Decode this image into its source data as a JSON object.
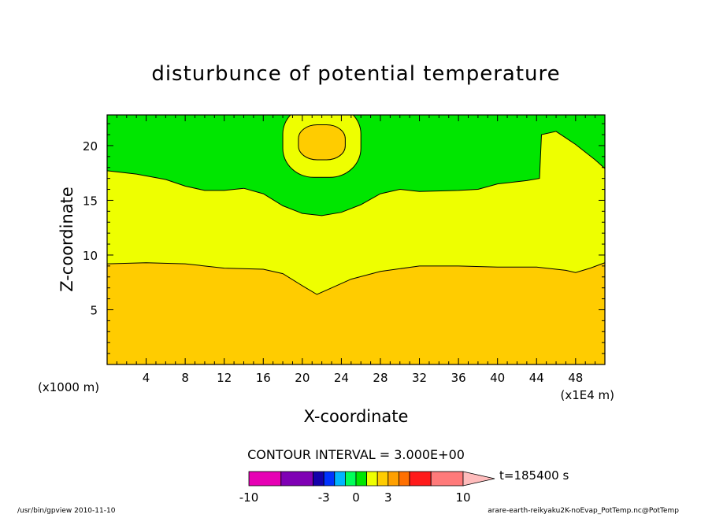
{
  "chart_data": {
    "type": "heatmap",
    "title": "disturbunce of potential temperature",
    "xlabel": "X-coordinate",
    "ylabel": "Z-coordinate",
    "x_unit_label": "(x1000 m)",
    "x_scale_label": "(x1E4 m)",
    "xlim": [
      0,
      51
    ],
    "ylim": [
      0,
      22.8
    ],
    "x_ticks": [
      4,
      8,
      12,
      16,
      20,
      24,
      28,
      32,
      36,
      40,
      44,
      48
    ],
    "y_ticks": [
      5,
      10,
      15,
      20
    ],
    "contour_interval_text": "CONTOUR INTERVAL = 3.000E+00",
    "time_label": "t=185400 s",
    "colorbar": {
      "tick_labels": [
        {
          "label": "-10",
          "value": -10
        },
        {
          "label": "-3",
          "value": -3
        },
        {
          "label": "0",
          "value": 0
        },
        {
          "label": "3",
          "value": 3
        },
        {
          "label": "10",
          "value": 10
        }
      ],
      "bins": [
        {
          "from": -10,
          "to": -7,
          "color": "#e600b4"
        },
        {
          "from": -7,
          "to": -4,
          "color": "#7f00b4"
        },
        {
          "from": -4,
          "to": -3,
          "color": "#1400aa"
        },
        {
          "from": -3,
          "to": -2,
          "color": "#0033ff"
        },
        {
          "from": -2,
          "to": -1,
          "color": "#00b4ff"
        },
        {
          "from": -1,
          "to": 0,
          "color": "#00ff59"
        },
        {
          "from": 0,
          "to": 1,
          "color": "#00e600"
        },
        {
          "from": 1,
          "to": 2,
          "color": "#eeff00"
        },
        {
          "from": 2,
          "to": 3,
          "color": "#ffcc00"
        },
        {
          "from": 3,
          "to": 4,
          "color": "#ffa000"
        },
        {
          "from": 4,
          "to": 5,
          "color": "#ff7000"
        },
        {
          "from": 5,
          "to": 7,
          "color": "#ff1a1a"
        },
        {
          "from": 7,
          "to": 10,
          "color": "#ff7a7a"
        }
      ],
      "overflow_color": "#ffbcbc"
    },
    "regions": [
      {
        "name": "lower-warm-layer",
        "color": "#ffcc00",
        "top_boundary": [
          [
            0,
            9.2
          ],
          [
            4,
            9.3
          ],
          [
            8,
            9.2
          ],
          [
            12,
            8.8
          ],
          [
            16,
            8.7
          ],
          [
            18,
            8.3
          ],
          [
            20,
            7.2
          ],
          [
            21.5,
            6.4
          ],
          [
            23,
            7.0
          ],
          [
            25,
            7.8
          ],
          [
            28,
            8.5
          ],
          [
            32,
            9.0
          ],
          [
            36,
            9.0
          ],
          [
            40,
            8.9
          ],
          [
            44,
            8.9
          ],
          [
            47,
            8.6
          ],
          [
            48,
            8.4
          ],
          [
            49.5,
            8.8
          ],
          [
            51,
            9.3
          ]
        ]
      },
      {
        "name": "middle-layer",
        "color": "#eeff00",
        "top_boundary": [
          [
            0,
            17.7
          ],
          [
            3,
            17.4
          ],
          [
            6,
            16.9
          ],
          [
            8,
            16.3
          ],
          [
            10,
            15.9
          ],
          [
            12,
            15.9
          ],
          [
            14,
            16.1
          ],
          [
            16,
            15.6
          ],
          [
            18,
            14.5
          ],
          [
            20,
            13.8
          ],
          [
            22,
            13.6
          ],
          [
            24,
            13.9
          ],
          [
            26,
            14.6
          ],
          [
            28,
            15.6
          ],
          [
            30,
            16.0
          ],
          [
            32,
            15.8
          ],
          [
            36,
            15.9
          ],
          [
            38,
            16.0
          ],
          [
            40,
            16.5
          ],
          [
            43,
            16.8
          ],
          [
            44.3,
            17.0
          ],
          [
            44.5,
            21.0
          ],
          [
            46,
            21.3
          ],
          [
            47,
            20.7
          ],
          [
            48,
            20.1
          ],
          [
            50,
            18.7
          ],
          [
            51,
            17.9
          ]
        ]
      },
      {
        "name": "upper-layer",
        "color": "#00e600"
      },
      {
        "name": "top-bubble-outer",
        "color": "#eeff00",
        "center": [
          22.0,
          20.4
        ],
        "radius": [
          4.0,
          3.3
        ]
      },
      {
        "name": "top-bubble-inner",
        "color": "#ffcc00",
        "center": [
          22.0,
          20.3
        ],
        "radius": [
          2.4,
          1.6
        ]
      }
    ]
  },
  "footer": {
    "left": "/usr/bin/gpview  2010-11-10",
    "right": "arare-earth-reikyaku2K-noEvap_PotTemp.nc@PotTemp"
  }
}
